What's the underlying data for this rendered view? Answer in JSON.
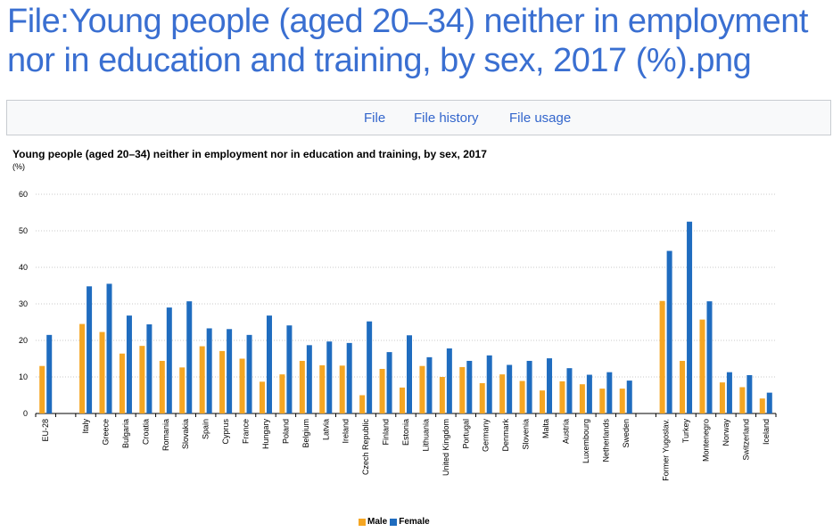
{
  "page": {
    "title": "File:Young people (aged 20–34) neither in employment nor in education and training, by sex, 2017 (%).png"
  },
  "tabs": [
    {
      "label": "File"
    },
    {
      "label": "File history"
    },
    {
      "label": "File usage"
    }
  ],
  "colors": {
    "male": "#f5a623",
    "female": "#1f6cbf",
    "title": "#3a6fd1",
    "link": "#3366cc",
    "grid": "#c8c8c8"
  },
  "chart_data": {
    "type": "bar",
    "title": "Young people (aged 20–34) neither in employment nor in education and training, by sex, 2017",
    "unit": "(%)",
    "ylim": [
      0,
      60
    ],
    "yticks": [
      0,
      10,
      20,
      30,
      40,
      50,
      60
    ],
    "grid": true,
    "legend_position": "bottom",
    "categories": [
      "EU-28",
      "",
      "Italy",
      "Greece",
      "Bulgaria",
      "Croatia",
      "Romania",
      "Slovakia",
      "Spain",
      "Cyprus",
      "France",
      "Hungary",
      "Poland",
      "Belgium",
      "Latvia",
      "Ireland",
      "Czech Republic",
      "Finland",
      "Estonia",
      "Lithuania",
      "United Kingdom",
      "Portugal",
      "Germany",
      "Denmark",
      "Slovenia",
      "Malta",
      "Austria",
      "Luxembourg",
      "Netherlands",
      "Sweden",
      "",
      "Former Yugoslav.",
      "Turkey",
      "Montenegro",
      "Norway",
      "Switzerland",
      "Iceland"
    ],
    "series": [
      {
        "name": "Male",
        "values": [
          13.0,
          null,
          24.5,
          22.3,
          16.4,
          18.5,
          14.4,
          12.6,
          18.4,
          17.1,
          15.0,
          8.7,
          10.7,
          14.4,
          13.2,
          13.1,
          5.0,
          12.2,
          7.1,
          13.0,
          10.0,
          12.7,
          8.3,
          10.7,
          8.9,
          6.3,
          8.8,
          8.0,
          6.8,
          6.8,
          null,
          30.8,
          14.4,
          25.7,
          8.5,
          7.2,
          4.1
        ]
      },
      {
        "name": "Female",
        "values": [
          21.5,
          null,
          34.8,
          35.5,
          26.8,
          24.4,
          29.0,
          30.7,
          23.3,
          23.1,
          21.5,
          26.8,
          24.1,
          18.7,
          19.7,
          19.3,
          25.2,
          16.8,
          21.4,
          15.4,
          17.8,
          14.4,
          15.9,
          13.3,
          14.4,
          15.1,
          12.4,
          10.6,
          11.3,
          9.0,
          null,
          44.5,
          52.5,
          30.7,
          11.3,
          10.5,
          5.7
        ]
      }
    ]
  }
}
